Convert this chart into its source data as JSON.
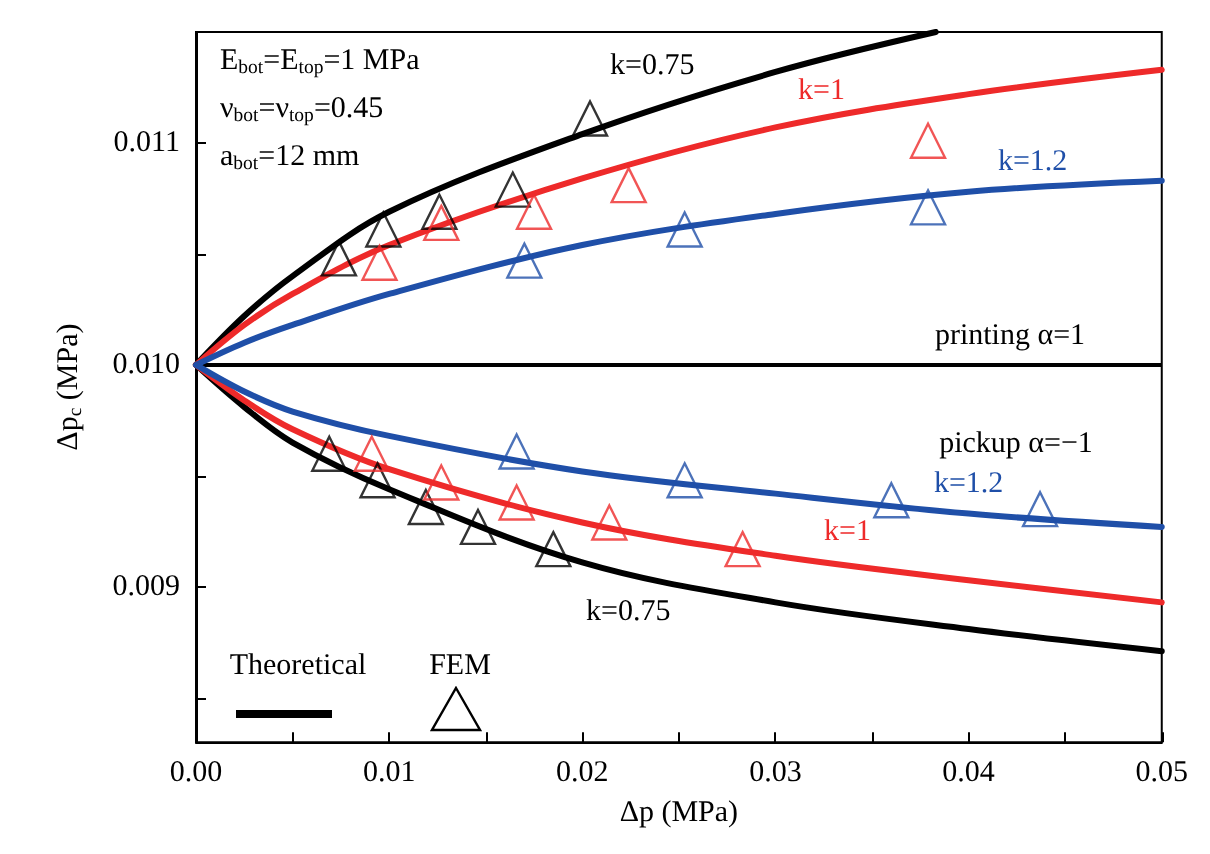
{
  "chart_data": {
    "type": "line",
    "xlabel": "Δp (MPa)",
    "ylabel": "Δp$_{c}$ (MPa)",
    "xlim": [
      0,
      0.05
    ],
    "xticks": [
      {
        "value": 0,
        "label": "0.00"
      },
      {
        "value": 0.005,
        "label": null
      },
      {
        "value": 0.01,
        "label": "0.01"
      },
      {
        "value": 0.015,
        "label": null
      },
      {
        "value": 0.02,
        "label": "0.02"
      },
      {
        "value": 0.025,
        "label": null
      },
      {
        "value": 0.03,
        "label": "0.03"
      },
      {
        "value": 0.035,
        "label": null
      },
      {
        "value": 0.04,
        "label": "0.04"
      },
      {
        "value": 0.045,
        "label": null
      },
      {
        "value": 0.05,
        "label": "0.05"
      }
    ],
    "ylim": [
      0.0083,
      0.0115
    ],
    "yticks": [
      {
        "value": 0.0085,
        "label": null
      },
      {
        "value": 0.009,
        "label": "0.009"
      },
      {
        "value": 0.0095,
        "label": null
      },
      {
        "value": 0.01,
        "label": "0.010"
      },
      {
        "value": 0.0105,
        "label": null
      },
      {
        "value": 0.011,
        "label": "0.011"
      }
    ],
    "grid": false,
    "line_style": "solid",
    "ref_lines": [
      {
        "axis": "y",
        "value": 0.01,
        "color": "#000000"
      }
    ],
    "series": [
      {
        "name": "k=0.75",
        "marker": "none",
        "color": "#000000",
        "x": [
          0,
          0.0025,
          0.005,
          0.01,
          0.02,
          0.03,
          0.0383
        ],
        "values": [
          0.01,
          0.01022,
          0.0104,
          0.01069,
          0.01104,
          0.01132,
          0.0115
        ]
      },
      {
        "name": "k=1",
        "marker": "none",
        "color": "#ee2a2a",
        "x": [
          0,
          0.0025,
          0.005,
          0.01,
          0.02,
          0.03,
          0.04,
          0.05
        ],
        "values": [
          0.01,
          0.01018,
          0.01032,
          0.01054,
          0.01084,
          0.01107,
          0.01122,
          0.01133
        ]
      },
      {
        "name": "k=1.2",
        "marker": "none",
        "color": "#1f4fa8",
        "x": [
          0,
          0.0025,
          0.005,
          0.01,
          0.02,
          0.03,
          0.04,
          0.05
        ],
        "values": [
          0.01,
          0.0101,
          0.01018,
          0.01032,
          0.01054,
          0.01068,
          0.01078,
          0.01083
        ]
      },
      {
        "name": "k=0.75",
        "marker": "none",
        "color": "#000000",
        "x": [
          0,
          0.0025,
          0.005,
          0.01,
          0.02,
          0.03,
          0.04,
          0.05
        ],
        "values": [
          0.01,
          0.00981,
          0.00965,
          0.00944,
          0.00911,
          0.00893,
          0.00881,
          0.00871
        ]
      },
      {
        "name": "k=1",
        "marker": "none",
        "color": "#ee2a2a",
        "x": [
          0,
          0.0025,
          0.005,
          0.01,
          0.02,
          0.03,
          0.04,
          0.05
        ],
        "values": [
          0.01,
          0.00984,
          0.00971,
          0.00953,
          0.00929,
          0.00914,
          0.00903,
          0.00893
        ]
      },
      {
        "name": "k=1.2",
        "marker": "none",
        "color": "#1f4fa8",
        "x": [
          0,
          0.0025,
          0.005,
          0.01,
          0.02,
          0.03,
          0.04,
          0.05
        ],
        "values": [
          0.01,
          0.00988,
          0.00979,
          0.00968,
          0.00952,
          0.00942,
          0.00933,
          0.00927
        ]
      },
      {
        "type": "scatter",
        "marker": "triangle",
        "color": "#000000",
        "x": [
          0.0074,
          0.0097,
          0.0126,
          0.0164,
          0.0204
        ],
        "values": [
          0.01048,
          0.01061,
          0.01069,
          0.01079,
          0.01111
        ]
      },
      {
        "type": "scatter",
        "marker": "triangle",
        "color": "#ee2a2a",
        "x": [
          0.0095,
          0.0127,
          0.0175,
          0.0224,
          0.0379
        ],
        "values": [
          0.01046,
          0.01064,
          0.01069,
          0.01081,
          0.01101
        ]
      },
      {
        "type": "scatter",
        "marker": "triangle",
        "color": "#1f4fa8",
        "x": [
          0.017,
          0.0253,
          0.0379
        ],
        "values": [
          0.01047,
          0.01061,
          0.01071
        ]
      },
      {
        "type": "scatter",
        "marker": "triangle",
        "color": "#000000",
        "x": [
          0.0069,
          0.0094,
          0.0119,
          0.0146,
          0.0185
        ],
        "values": [
          0.0096,
          0.00948,
          0.00936,
          0.00927,
          0.00917
        ]
      },
      {
        "type": "scatter",
        "marker": "triangle",
        "color": "#ee2a2a",
        "x": [
          0.0091,
          0.0127,
          0.0166,
          0.0214,
          0.0283
        ],
        "values": [
          0.0096,
          0.00947,
          0.00938,
          0.00929,
          0.00917
        ]
      },
      {
        "type": "scatter",
        "marker": "triangle",
        "color": "#1f4fa8",
        "x": [
          0.0166,
          0.0253,
          0.036,
          0.0437
        ],
        "values": [
          0.00961,
          0.00948,
          0.00939,
          0.00935
        ]
      }
    ],
    "annotations": [
      "E$_{bot}$=E$_{top}$=1 MPa",
      "ν$_{bot}$=ν$_{top}$=0.45",
      "a$_{bot}$=12 mm",
      "printing α=1",
      "pickup α=−1",
      "Theoretical",
      "FEM"
    ]
  }
}
